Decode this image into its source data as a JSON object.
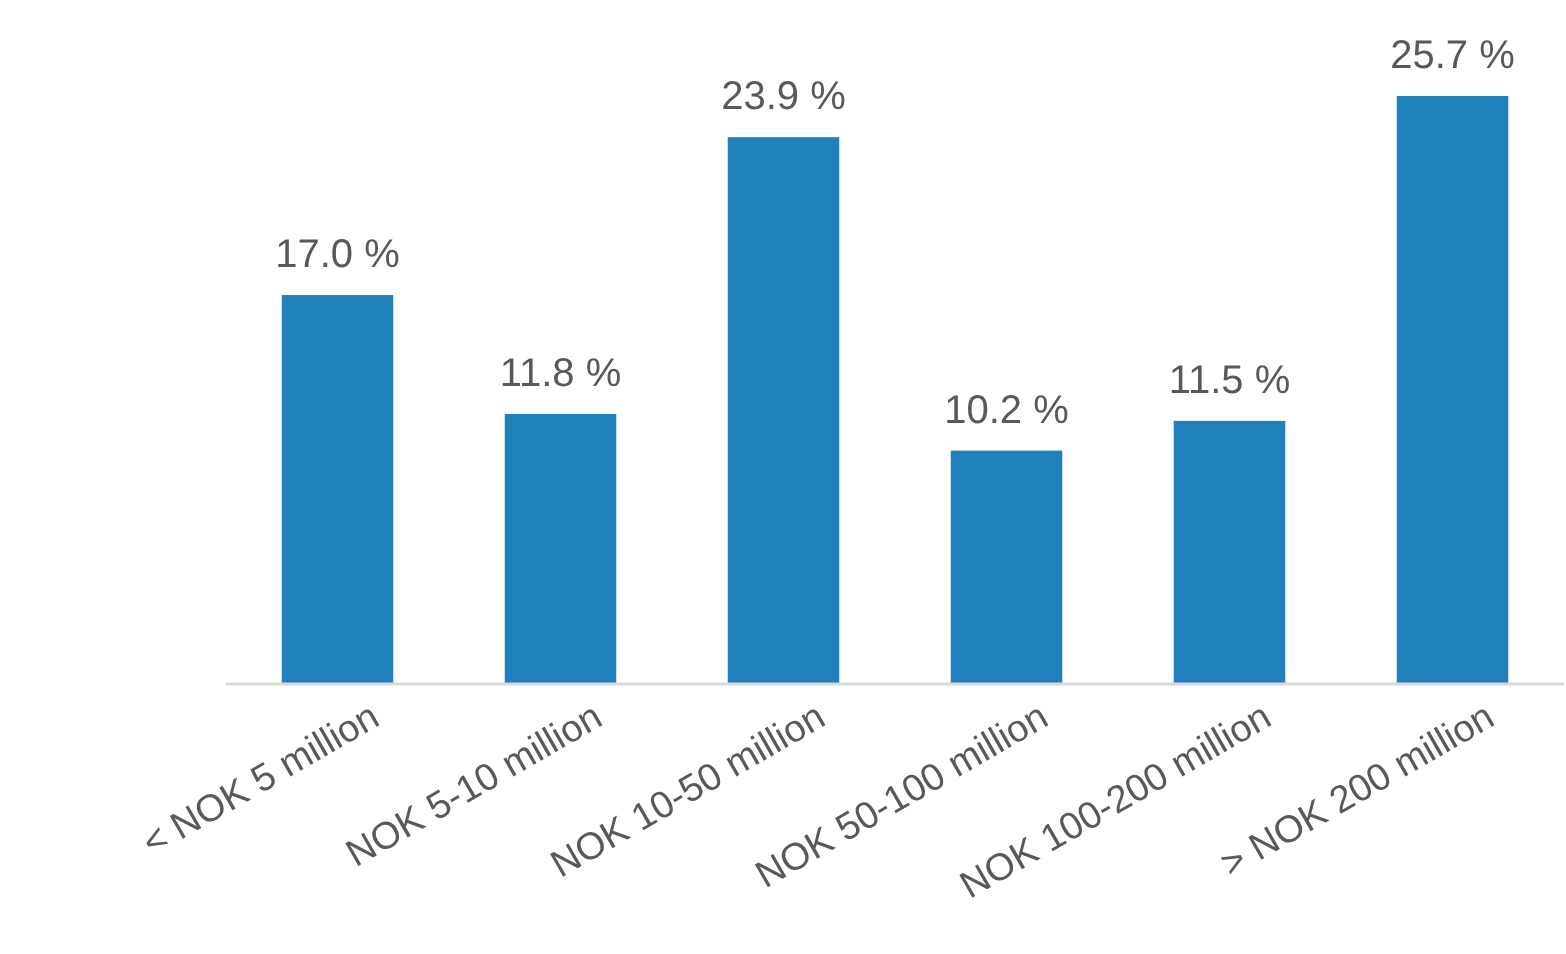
{
  "chart_data": {
    "type": "bar",
    "categories": [
      "< NOK 5 million",
      "NOK 5-10 million",
      "NOK 10-50 million",
      "NOK 50-100 million",
      "NOK 100-200 million",
      "> NOK 200 million"
    ],
    "values": [
      17.0,
      11.8,
      23.9,
      10.2,
      11.5,
      25.7
    ],
    "value_labels": [
      "17.0 %",
      "11.8 %",
      "23.9 %",
      "10.2 %",
      "11.5 %",
      "25.7 %"
    ],
    "color": "#1f80bc"
  }
}
